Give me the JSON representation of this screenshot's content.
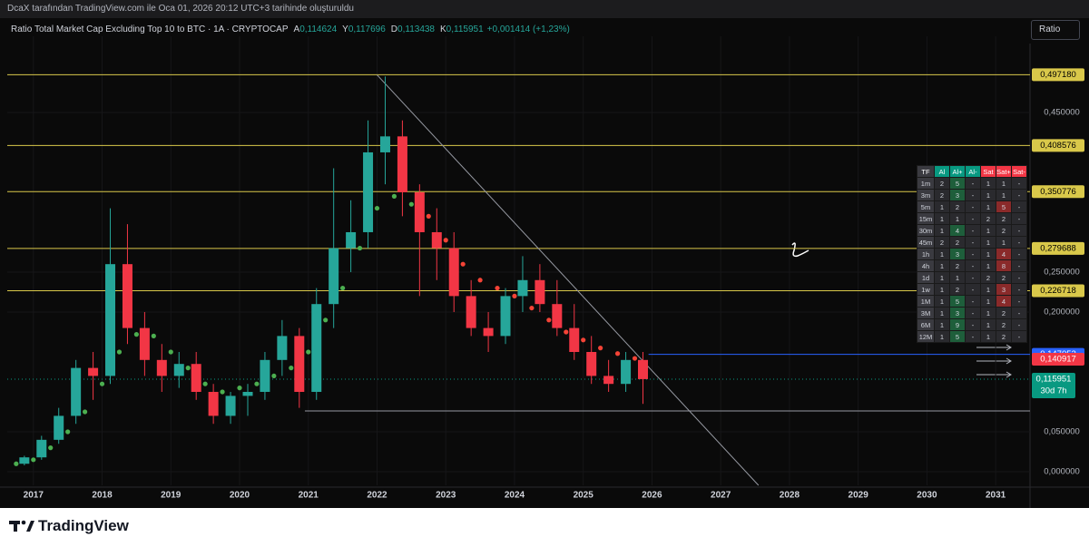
{
  "header": {
    "credit": "DcaX tarafından TradingView.com ile Oca 01, 2026 20:12 UTC+3 tarihinde oluşturuldu",
    "symbol": "Ratio Total Market Cap Excluding Top 10 to BTC · 1A · CRYPTOCAP",
    "ohlc": [
      {
        "key": "A",
        "value": "0,114624"
      },
      {
        "key": "Y",
        "value": "0,117696"
      },
      {
        "key": "D",
        "value": "0,113438"
      },
      {
        "key": "K",
        "value": "0,115951"
      }
    ],
    "change": "+0,001414 (+1,23%)",
    "scale_button": "Ratio"
  },
  "chart_data": {
    "type": "candlestick",
    "up_color": "#26a69a",
    "down_color": "#f23645",
    "x": [
      2016.75,
      2017.0,
      2017.25,
      2017.5,
      2017.75,
      2018.0,
      2018.25,
      2018.5,
      2018.75,
      2019.0,
      2019.25,
      2019.5,
      2019.75,
      2020.0,
      2020.25,
      2020.5,
      2020.75,
      2021.0,
      2021.25,
      2021.5,
      2021.75,
      2022.0,
      2022.25,
      2022.5,
      2022.75,
      2023.0,
      2023.25,
      2023.5,
      2023.75,
      2024.0,
      2024.25,
      2024.5,
      2024.75,
      2025.0,
      2025.25,
      2025.5,
      2025.75
    ],
    "open": [
      0.01,
      0.018,
      0.04,
      0.07,
      0.13,
      0.12,
      0.26,
      0.18,
      0.14,
      0.12,
      0.135,
      0.1,
      0.07,
      0.095,
      0.1,
      0.14,
      0.17,
      0.1,
      0.21,
      0.28,
      0.3,
      0.4,
      0.42,
      0.35,
      0.3,
      0.28,
      0.22,
      0.18,
      0.17,
      0.22,
      0.24,
      0.21,
      0.18,
      0.15,
      0.12,
      0.11,
      0.14
    ],
    "high": [
      0.02,
      0.045,
      0.08,
      0.14,
      0.15,
      0.33,
      0.31,
      0.2,
      0.16,
      0.15,
      0.15,
      0.11,
      0.1,
      0.11,
      0.15,
      0.19,
      0.18,
      0.23,
      0.38,
      0.34,
      0.44,
      0.495,
      0.44,
      0.36,
      0.33,
      0.3,
      0.24,
      0.2,
      0.23,
      0.27,
      0.26,
      0.24,
      0.21,
      0.17,
      0.14,
      0.15,
      0.15
    ],
    "low": [
      0.008,
      0.015,
      0.035,
      0.06,
      0.09,
      0.11,
      0.16,
      0.12,
      0.1,
      0.105,
      0.09,
      0.06,
      0.06,
      0.07,
      0.09,
      0.12,
      0.08,
      0.09,
      0.18,
      0.25,
      0.28,
      0.36,
      0.32,
      0.22,
      0.24,
      0.2,
      0.17,
      0.15,
      0.16,
      0.2,
      0.2,
      0.17,
      0.14,
      0.11,
      0.1,
      0.1,
      0.085
    ],
    "close": [
      0.018,
      0.04,
      0.07,
      0.13,
      0.12,
      0.26,
      0.18,
      0.14,
      0.12,
      0.135,
      0.1,
      0.07,
      0.095,
      0.1,
      0.14,
      0.17,
      0.1,
      0.21,
      0.28,
      0.3,
      0.4,
      0.42,
      0.35,
      0.3,
      0.28,
      0.22,
      0.18,
      0.17,
      0.22,
      0.24,
      0.21,
      0.18,
      0.15,
      0.12,
      0.11,
      0.14,
      0.116
    ],
    "sar": [
      {
        "color": "#4caf50",
        "values": [
          0.01,
          0.015,
          0.03,
          0.05,
          0.075,
          0.11,
          0.15,
          0.172,
          0.17,
          0.15,
          0.13,
          0.11,
          0.1,
          0.105,
          0.11,
          0.12,
          0.13,
          0.15,
          0.19,
          0.23,
          0.28,
          0.33,
          0.345,
          0.335,
          null,
          null,
          null,
          null,
          null,
          null,
          null,
          null,
          null,
          null,
          null,
          null,
          null
        ]
      },
      {
        "color": "#f44336",
        "values": [
          null,
          null,
          null,
          null,
          null,
          null,
          null,
          null,
          null,
          null,
          null,
          null,
          null,
          null,
          null,
          null,
          null,
          null,
          null,
          null,
          null,
          null,
          null,
          null,
          0.32,
          0.29,
          0.26,
          0.24,
          0.23,
          0.22,
          0.205,
          0.19,
          0.175,
          0.165,
          0.155,
          0.148,
          0.142
        ]
      }
    ],
    "xlim": [
      2016.62,
      2031.5
    ],
    "xticks": [
      2017,
      2018,
      2019,
      2020,
      2021,
      2022,
      2023,
      2024,
      2025,
      2026,
      2027,
      2028,
      2029,
      2030,
      2031
    ],
    "ylim": [
      -0.017,
      0.534
    ],
    "yticks": [
      {
        "value": 0,
        "label": "0,000000"
      },
      {
        "value": 0.05,
        "label": "0,050000"
      },
      {
        "value": 0.2,
        "label": "0,200000"
      },
      {
        "value": 0.25,
        "label": "0,250000"
      },
      {
        "value": 0.45,
        "label": "0,450000"
      }
    ],
    "grid": true,
    "levels": {
      "color": "#d9c84a",
      "items": [
        {
          "value": 0.49718,
          "label": "0,497180"
        },
        {
          "value": 0.408576,
          "label": "0,408576"
        },
        {
          "value": 0.350776,
          "label": "0,350776"
        },
        {
          "value": 0.279688,
          "label": "0,279688"
        },
        {
          "value": 0.226718,
          "label": "0,226718"
        }
      ]
    },
    "lines": [
      {
        "color": "#9598a1",
        "x": [
          2022.0,
          2027.55
        ],
        "values": [
          0.497,
          -0.017
        ]
      },
      {
        "color": "#9598a1",
        "x": [
          2020.95,
          2031.5
        ],
        "values": [
          0.0761,
          0.0761
        ]
      },
      {
        "color": "#2962ff",
        "x": [
          2025.95,
          2031.5
        ],
        "values": [
          0.147052,
          0.147052
        ]
      }
    ],
    "price_labels": [
      {
        "color": "#2962ff",
        "value": 0.147052,
        "label": "0,147052"
      },
      {
        "color": "#f23645",
        "value": 0.140917,
        "label": "0,140917"
      }
    ],
    "last_price": {
      "color": "#089981",
      "value": 0.115951,
      "label": "0,115951",
      "countdown": "30d 7h"
    }
  },
  "signal_table": {
    "header": [
      "TF",
      "Al",
      "Al+",
      "Al-",
      "Sat",
      "Sat+",
      "Sat-"
    ],
    "rows": [
      [
        "1m",
        "2",
        "5",
        "-",
        "1",
        "1",
        "-"
      ],
      [
        "3m",
        "2",
        "3",
        "-",
        "1",
        "1",
        "-"
      ],
      [
        "5m",
        "1",
        "2",
        "-",
        "1",
        "5",
        "-"
      ],
      [
        "15m",
        "1",
        "1",
        "-",
        "2",
        "2",
        "-"
      ],
      [
        "30m",
        "1",
        "4",
        "-",
        "1",
        "2",
        "-"
      ],
      [
        "45m",
        "2",
        "2",
        "-",
        "1",
        "1",
        "-"
      ],
      [
        "1h",
        "1",
        "3",
        "-",
        "1",
        "4",
        "-"
      ],
      [
        "4h",
        "1",
        "2",
        "-",
        "1",
        "8",
        "-"
      ],
      [
        "1d",
        "1",
        "1",
        "-",
        "2",
        "2",
        "-"
      ],
      [
        "1w",
        "1",
        "2",
        "-",
        "1",
        "3",
        "-"
      ],
      [
        "1M",
        "1",
        "5",
        "-",
        "1",
        "4",
        "-"
      ],
      [
        "3M",
        "1",
        "3",
        "-",
        "1",
        "2",
        "-"
      ],
      [
        "6M",
        "1",
        "9",
        "-",
        "1",
        "2",
        "-"
      ],
      [
        "12M",
        "1",
        "5",
        "-",
        "1",
        "2",
        "-"
      ]
    ]
  },
  "footer": {
    "brand": "TradingView"
  }
}
